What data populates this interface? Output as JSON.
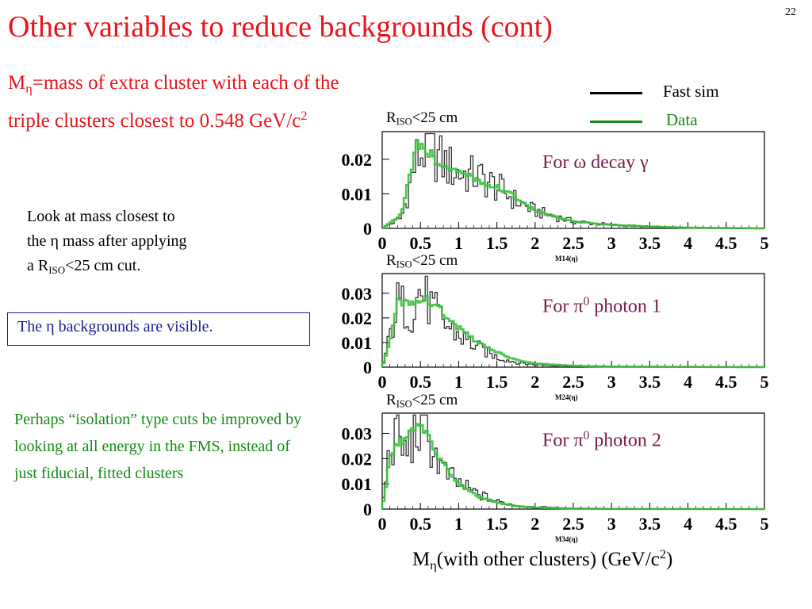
{
  "slide": {
    "page_number": "22",
    "title": "Other variables to reduce backgrounds (cont)",
    "definition": {
      "m_symbol": "M",
      "eta": "η",
      "text": "=mass of extra cluster with each of the triple clusters closest to 0.548 GeV/c",
      "exp": "2"
    },
    "note": {
      "line1": "Look at mass closest to",
      "line2_pre": "the ",
      "line2_eta": "η",
      "line2_post": " mass after applying",
      "line3_pre": "a R",
      "line3_sub": "ISO",
      "line3_post": "<25 cm cut."
    },
    "boxed_note": {
      "pre": "The ",
      "eta": "η",
      "post": " backgrounds are visible."
    },
    "green_note": "Perhaps “isolation” type cuts be improved by looking at all energy in the FMS, instead of just fiducial, fitted clusters",
    "x_axis_title": {
      "m": "M",
      "eta": "η",
      "mid": "(with other clusters) (GeV/c",
      "exp": "2",
      "end": ")"
    }
  },
  "colors": {
    "title": "#e8141b",
    "box": "#1b1d8f",
    "green": "#158a15",
    "label": "#7a1a4a",
    "data_series": "#38c038",
    "sim_series": "#333333"
  },
  "legend": [
    {
      "label": "Fast sim",
      "color": "#000000"
    },
    {
      "label": "Data",
      "color": "#158a15"
    }
  ],
  "panels": [
    {
      "cut": {
        "r": "R",
        "sub": "ISO",
        "rest": "<25 cm"
      },
      "label_pre": "For ",
      "label_sym": "ω",
      "label_mid": " decay ",
      "label_end": "γ",
      "label_sup": "",
      "hist_name": "M14(η)"
    },
    {
      "cut": {
        "r": "R",
        "sub": "ISO",
        "rest": "<25 cm"
      },
      "label_pre": "For ",
      "label_sym": "π",
      "label_mid": "",
      "label_end": " photon 1",
      "label_sup": "0",
      "hist_name": "M24(η)"
    },
    {
      "cut": {
        "r": "R",
        "sub": "ISO",
        "rest": "<25 cm"
      },
      "label_pre": "For ",
      "label_sym": "π",
      "label_mid": "",
      "label_end": " photon 2",
      "label_sup": "0",
      "hist_name": "M34(η)"
    }
  ],
  "chart_data": [
    {
      "type": "line",
      "title": "For ω decay γ",
      "xlim": [
        0,
        5
      ],
      "ylim": [
        0,
        0.028
      ],
      "x_ticks": [
        "0",
        "0.5",
        "1",
        "1.5",
        "2",
        "2.5",
        "3",
        "3.5",
        "4",
        "4.5",
        "5"
      ],
      "y_ticks": [
        "0",
        "0.01",
        "0.02"
      ],
      "x": [
        0.25,
        0.45,
        0.6,
        0.8,
        1.0,
        1.25,
        1.5,
        1.75,
        2.0,
        2.5,
        3.0,
        3.5,
        4.0,
        5.0
      ],
      "series": [
        {
          "name": "Fast sim",
          "values": [
            0.003,
            0.02,
            0.024,
            0.019,
            0.016,
            0.015,
            0.012,
            0.008,
            0.005,
            0.002,
            0.001,
            0.0005,
            0.0002,
            0.0
          ]
        },
        {
          "name": "Data",
          "values": [
            0.004,
            0.024,
            0.022,
            0.018,
            0.016,
            0.014,
            0.012,
            0.009,
            0.005,
            0.002,
            0.001,
            0.0005,
            0.0002,
            0.0
          ]
        }
      ]
    },
    {
      "type": "line",
      "title": "For π0 photon 1",
      "xlim": [
        0,
        5
      ],
      "ylim": [
        0,
        0.038
      ],
      "x_ticks": [
        "0",
        "0.5",
        "1",
        "1.5",
        "2",
        "2.5",
        "3",
        "3.5",
        "4",
        "4.5",
        "5"
      ],
      "y_ticks": [
        "0",
        "0.01",
        "0.02",
        "0.03"
      ],
      "x": [
        0.1,
        0.2,
        0.4,
        0.5,
        0.6,
        0.8,
        1.0,
        1.25,
        1.5,
        1.75,
        2.0,
        2.5,
        3.0,
        5.0
      ],
      "series": [
        {
          "name": "Fast sim",
          "values": [
            0.012,
            0.026,
            0.022,
            0.032,
            0.026,
            0.018,
            0.013,
            0.008,
            0.004,
            0.002,
            0.001,
            0.0005,
            0.0002,
            0.0
          ]
        },
        {
          "name": "Data",
          "values": [
            0.01,
            0.026,
            0.027,
            0.028,
            0.027,
            0.022,
            0.016,
            0.01,
            0.006,
            0.003,
            0.0015,
            0.0005,
            0.0002,
            0.0
          ]
        }
      ]
    },
    {
      "type": "line",
      "title": "For π0 photon 2",
      "xlim": [
        0,
        5
      ],
      "ylim": [
        0,
        0.038
      ],
      "x_ticks": [
        "0",
        "0.5",
        "1",
        "1.5",
        "2",
        "2.5",
        "3",
        "3.5",
        "4",
        "4.5",
        "5"
      ],
      "y_ticks": [
        "0",
        "0.01",
        "0.02",
        "0.03"
      ],
      "x": [
        0.1,
        0.2,
        0.3,
        0.5,
        0.6,
        0.8,
        1.0,
        1.25,
        1.5,
        1.75,
        2.0,
        2.5,
        3.0,
        5.0
      ],
      "series": [
        {
          "name": "Fast sim",
          "values": [
            0.025,
            0.03,
            0.022,
            0.033,
            0.028,
            0.015,
            0.01,
            0.006,
            0.003,
            0.0015,
            0.0008,
            0.0003,
            0.0001,
            0.0
          ]
        },
        {
          "name": "Data",
          "values": [
            0.02,
            0.026,
            0.028,
            0.034,
            0.028,
            0.018,
            0.01,
            0.005,
            0.0025,
            0.0012,
            0.0006,
            0.0002,
            0.0001,
            0.0
          ]
        }
      ]
    }
  ]
}
